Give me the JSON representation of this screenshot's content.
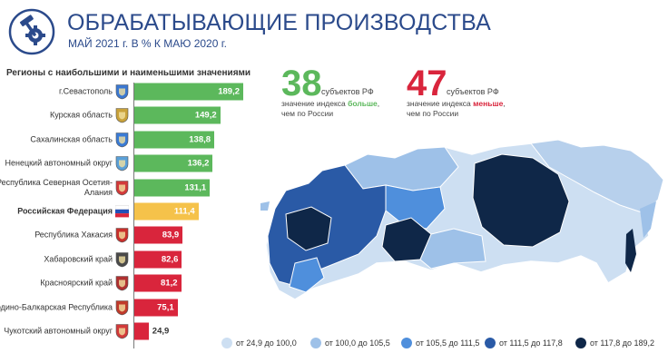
{
  "header": {
    "title": "ОБРАБАТЫВАЮЩИЕ ПРОИЗВОДСТВА",
    "subtitle": "МАЙ 2021 г. В % К МАЮ 2020 г.",
    "section_heading": "Регионы с наибольшими и наименьшими значениями",
    "logo_icon": "hammer-gear-icon"
  },
  "colors": {
    "green": "#5cb85c",
    "yellow": "#f5c24a",
    "red": "#d9253c",
    "title_blue": "#2b4a8b",
    "legend": [
      "#cddff2",
      "#9ec1e8",
      "#4f8fdc",
      "#2a5aa6",
      "#0f2748"
    ]
  },
  "stats": {
    "more": {
      "number": "38",
      "label": "субъектов РФ",
      "line1_prefix": "значение индекса ",
      "line1_emph": "больше",
      "line1_suffix": ",",
      "line2": "чем по России"
    },
    "less": {
      "number": "47",
      "label": "субъектов РФ",
      "line1_prefix": "значение индекса ",
      "line1_emph": "меньше",
      "line1_suffix": ",",
      "line2": "чем по России"
    }
  },
  "chart_data": {
    "type": "bar",
    "orientation": "horizontal",
    "title": "ОБРАБАТЫВАЮЩИЕ ПРОИЗВОДСТВА",
    "subtitle": "МАЙ 2021 г. В % К МАЮ 2020 г.",
    "categories": [
      "г.Севастополь",
      "Курская область",
      "Сахалинская область",
      "Ненецкий автономный округ",
      "Республика Северная Осетия- Алания",
      "Российская Федерация",
      "Республика Хакасия",
      "Хабаровский край",
      "Красноярский край",
      "Кабардино-Балкарская Республика",
      "Чукотский автономный округ"
    ],
    "values": [
      189.2,
      149.2,
      138.8,
      136.2,
      131.1,
      111.4,
      83.9,
      82.6,
      81.2,
      75.1,
      24.9
    ],
    "value_labels": [
      "189,2",
      "149,2",
      "138,8",
      "136,2",
      "131,1",
      "111,4",
      "83,9",
      "82,6",
      "81,2",
      "75,1",
      "24,9"
    ],
    "bar_colors": [
      "green",
      "green",
      "green",
      "green",
      "green",
      "yellow",
      "red",
      "red",
      "red",
      "red",
      "red"
    ],
    "emblems": [
      "sevastopol-emblem-icon",
      "kursk-emblem-icon",
      "sakhalin-emblem-icon",
      "nenets-emblem-icon",
      "north-ossetia-emblem-icon",
      "russia-flag-icon",
      "khakassia-emblem-icon",
      "khabarovsk-emblem-icon",
      "krasnoyarsk-emblem-icon",
      "kabardino-balkaria-emblem-icon",
      "chukotka-emblem-icon"
    ],
    "xlim": [
      0,
      189.2
    ],
    "legend": [
      "от 24,9 до 100,0",
      "от 100,0 до 105,5",
      "от 105,5 до 111,5",
      "от 111,5 до 117,8",
      "от 117,8 до 189,2"
    ]
  }
}
